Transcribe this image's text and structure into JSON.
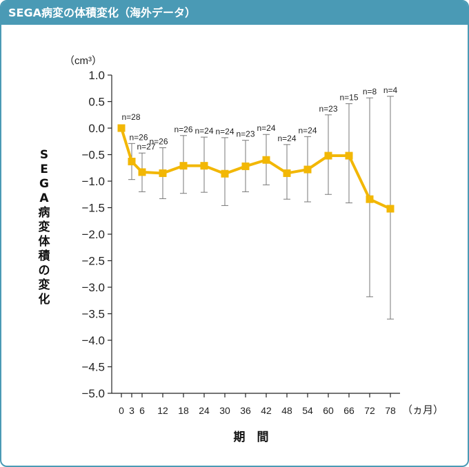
{
  "header": {
    "title": "SEGA病変の体積変化（海外データ）"
  },
  "colors": {
    "header_bg": "#4a9ab5",
    "series": "#f2b705",
    "errorbar": "#777777"
  },
  "chart_data": {
    "type": "line",
    "ylabel": "SEGA病変体積の変化",
    "yunit": "（cm³）",
    "xlabel": "期　間",
    "xunit": "（ヵ月）",
    "ylim": [
      -5.0,
      1.0
    ],
    "yticks": [
      "1.0",
      "0.5",
      "0.0",
      "−0.5",
      "−1.0",
      "−1.5",
      "−2.0",
      "−2.5",
      "−3.0",
      "−3.5",
      "−4.0",
      "−4.5",
      "−5.0"
    ],
    "x": [
      0,
      3,
      6,
      12,
      18,
      24,
      30,
      36,
      42,
      48,
      54,
      60,
      66,
      72,
      78
    ],
    "xtick_labels": [
      "0",
      "3",
      "6",
      "12",
      "18",
      "24",
      "30",
      "36",
      "42",
      "48",
      "54",
      "60",
      "66",
      "72",
      "78"
    ],
    "series": [
      {
        "values": [
          0.0,
          -0.63,
          -0.83,
          -0.85,
          -0.71,
          -0.71,
          -0.86,
          -0.72,
          -0.6,
          -0.85,
          -0.78,
          -0.52,
          -0.52,
          -1.34,
          -1.52
        ],
        "err_upper": [
          0.0,
          -0.29,
          -0.47,
          -0.37,
          -0.14,
          -0.17,
          -0.18,
          -0.23,
          -0.12,
          -0.31,
          -0.16,
          0.25,
          0.46,
          0.57,
          0.6
        ],
        "err_lower": [
          0.0,
          -0.97,
          -1.2,
          -1.33,
          -1.23,
          -1.21,
          -1.46,
          -1.2,
          -1.07,
          -1.34,
          -1.39,
          -1.25,
          -1.41,
          -3.18,
          -3.6
        ],
        "n_labels": [
          "n=28",
          "n=26",
          "n=27",
          "n=26",
          "n=26",
          "n=24",
          "n=24",
          "n=23",
          "n=24",
          "n=24",
          "n=24",
          "n=23",
          "n=15",
          "n=8",
          "n=4"
        ]
      }
    ],
    "grid": false,
    "legend": "none"
  }
}
